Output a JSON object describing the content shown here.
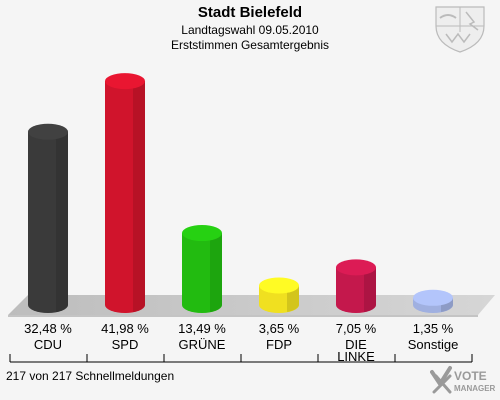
{
  "header": {
    "title": "Stadt Bielefeld",
    "subtitle1": "Landtagswahl 09.05.2010",
    "subtitle2": "Erststimmen Gesamtergebnis"
  },
  "footer": {
    "text": "217 von 217 Schnellmeldungen"
  },
  "logo": {
    "text_line1": "VOTE",
    "text_line2": "MANAGER"
  },
  "crest": {
    "icon": "nrw-coat-of-arms-icon"
  },
  "chart_data": {
    "type": "bar",
    "categories": [
      "CDU",
      "SPD",
      "GRÜNE",
      "FDP",
      "DIE LINKE",
      "Sonstige"
    ],
    "values": [
      32.48,
      41.98,
      13.49,
      3.65,
      7.05,
      1.35
    ],
    "value_labels": [
      "32,48 %",
      "41,98 %",
      "13,49 %",
      "3,65 %",
      "7,05 %",
      "1,35 %"
    ],
    "colors": [
      "#3a3a3a",
      "#d0142c",
      "#22bb10",
      "#f0e020",
      "#c4184c",
      "#a0b0e0"
    ],
    "ylim": [
      0,
      45
    ],
    "grid": false,
    "legend": "none"
  }
}
